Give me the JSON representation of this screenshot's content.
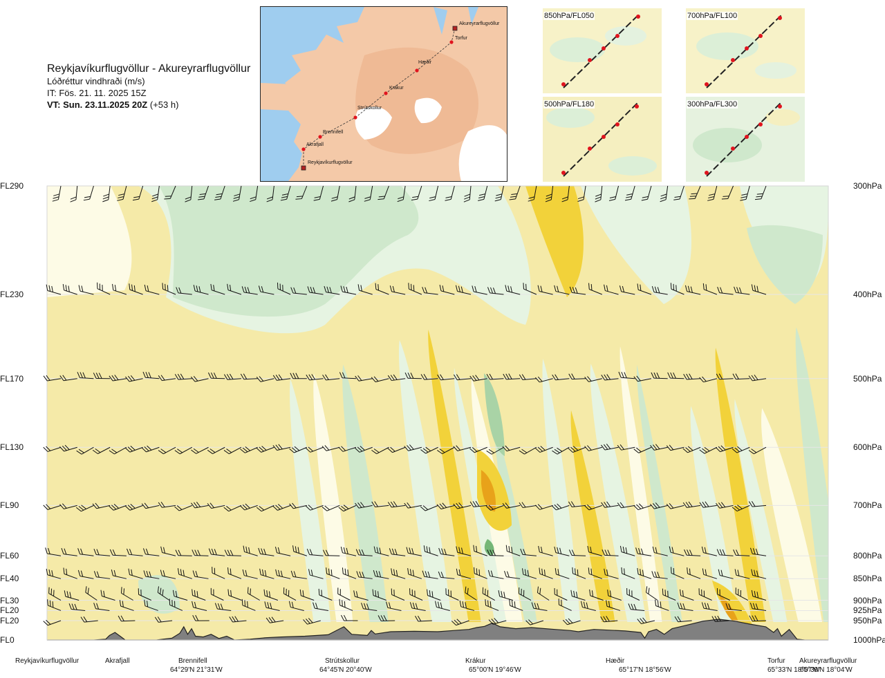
{
  "header": {
    "route": "Reykjavíkurflugvöllur - Akureyrarflugvöllur",
    "quantity": "Lóðréttur vindhraði (m/s)",
    "issue": "IT: Fös. 21. 11. 2025 15Z",
    "valid_bold": "VT: Sun. 23.11.2025 20Z",
    "valid_lead": "(+53 h)"
  },
  "map": {
    "places": [
      "Akureyrarflugvöllur",
      "Torfur",
      "Hæðir",
      "Krákur",
      "Strútskollur",
      "Brennifell",
      "Akrafjall",
      "Reykjavíkurflugvöllur"
    ],
    "colors": {
      "sea": "#9fcdef",
      "land": "#f4c9a8",
      "glacier": "#ffffff",
      "route": "#333333",
      "point": "#e0141e"
    }
  },
  "panels": [
    {
      "label": "850hPa/FL050"
    },
    {
      "label": "700hPa/FL100"
    },
    {
      "label": "500hPa/FL180"
    },
    {
      "label": "300hPa/FL300"
    }
  ],
  "chart_data": {
    "type": "heatmap",
    "title": "Lóðréttur vindhraði (m/s)",
    "flight_levels": [
      "FL290",
      "FL230",
      "FL170",
      "FL130",
      "FL90",
      "FL60",
      "FL40",
      "FL30",
      "FL20",
      "FL20",
      "FL0"
    ],
    "pressure_levels": [
      "300hPa",
      "400hPa",
      "500hPa",
      "600hPa",
      "700hPa",
      "800hPa",
      "850hPa",
      "900hPa",
      "925hPa",
      "950hPa",
      "1000hPa"
    ],
    "pressure_values": [
      300,
      400,
      500,
      600,
      700,
      800,
      850,
      900,
      925,
      950,
      1000
    ],
    "waypoints": [
      {
        "name": "Reykjavíkurflugvöllur",
        "coord": "",
        "dist": 0.0
      },
      {
        "name": "Akrafjall",
        "coord": "",
        "dist": 0.087
      },
      {
        "name": "Brennifell",
        "coord": "64°29'N 21°31'W",
        "dist": 0.185
      },
      {
        "name": "Strútskollur",
        "coord": "64°45'N 20°40'W",
        "dist": 0.376
      },
      {
        "name": "Krákur",
        "coord": "65°00'N 19°46'W",
        "dist": 0.57
      },
      {
        "name": "Hæðir",
        "coord": "65°17'N 18°56'W",
        "dist": 0.768
      },
      {
        "name": "Torfur",
        "coord": "65°33'N 18°07'W",
        "dist": 0.94
      },
      {
        "name": "Akureyrarflugvöllur",
        "coord": "65°39'N 18°04'W",
        "dist": 1.0
      }
    ],
    "color_scale": {
      "strong_down": "#e8a21a",
      "moderate_down": "#f2d23a",
      "weak_down": "#f5eaa8",
      "near_zero": "#fdfbe6",
      "weak_up": "#e6f4e2",
      "moderate_up": "#cfe8cc",
      "strong_up": "#a9d3a6",
      "very_strong_up": "#74b677",
      "terrain": "#808080"
    },
    "grid": true
  }
}
